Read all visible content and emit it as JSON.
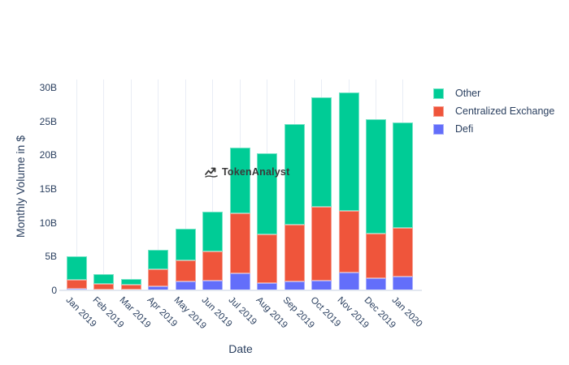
{
  "chart_data": {
    "type": "bar",
    "stacked": true,
    "title": "",
    "xlabel": "Date",
    "ylabel": "Monthly Volume in $",
    "categories": [
      "Jan 2019",
      "Feb 2019",
      "Mar 2019",
      "Apr 2019",
      "May 2019",
      "Jun 2019",
      "Jul 2019",
      "Aug 2019",
      "Sep 2019",
      "Oct 2019",
      "Nov 2019",
      "Dec 2019",
      "Jan 2020"
    ],
    "series": [
      {
        "name": "Defi",
        "color": "#636EFA",
        "values": [
          0.3,
          0.15,
          0.1,
          0.6,
          1.3,
          1.5,
          2.5,
          1.1,
          1.3,
          1.4,
          2.6,
          1.8,
          2.1
        ]
      },
      {
        "name": "Centralized Exchange",
        "color": "#EF553B",
        "values": [
          1.3,
          0.75,
          0.7,
          2.5,
          3.2,
          4.3,
          8.9,
          7.2,
          8.4,
          11.0,
          9.2,
          6.6,
          7.1
        ]
      },
      {
        "name": "Other",
        "color": "#00CC96",
        "values": [
          3.4,
          1.5,
          0.85,
          2.9,
          4.6,
          5.8,
          9.7,
          12.0,
          14.9,
          16.2,
          17.5,
          16.9,
          15.7
        ]
      }
    ],
    "totals": [
      5.0,
      2.4,
      1.65,
      6.0,
      9.1,
      11.6,
      21.1,
      20.3,
      24.6,
      28.6,
      29.3,
      25.3,
      24.9
    ],
    "unit": "B",
    "ylim": [
      0,
      30
    ],
    "yticks": [
      {
        "value": 0,
        "label": "0"
      },
      {
        "value": 5,
        "label": "5B"
      },
      {
        "value": 10,
        "label": "10B"
      },
      {
        "value": 15,
        "label": "15B"
      },
      {
        "value": 20,
        "label": "20B"
      },
      {
        "value": 25,
        "label": "25B"
      },
      {
        "value": 30,
        "label": "30B"
      }
    ],
    "legend_order": [
      "Other",
      "Centralized Exchange",
      "Defi"
    ],
    "legend_position": "top-right",
    "grid": "vertical-only",
    "colors": {
      "tick_text": "#2a3f5f",
      "gridline": "#e9edf5",
      "axis_line": "#e3e8f0"
    }
  },
  "watermark": {
    "label": "TokenAnalyst",
    "icon": "trend-up-icon",
    "color": "#3a3a3a"
  }
}
